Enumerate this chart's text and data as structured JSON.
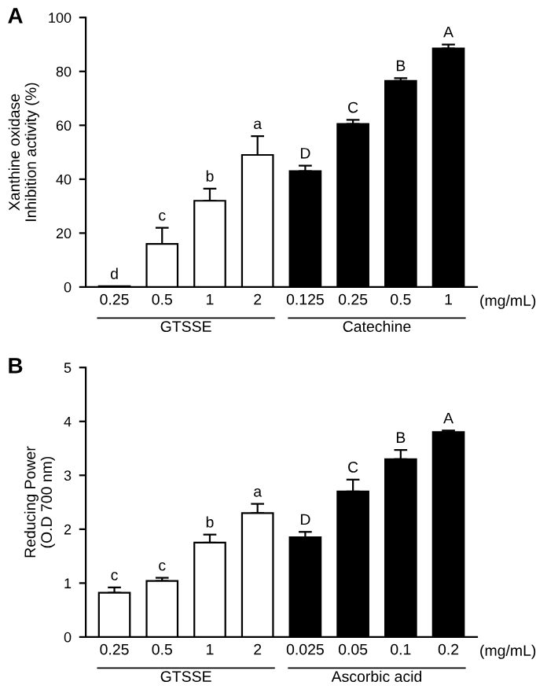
{
  "chart_data": [
    {
      "type": "bar",
      "title": "A",
      "ylabel": "Xanthine oxidase\nInhibition activity (%)",
      "categories": [
        "0.25",
        "0.5",
        "1",
        "2",
        "0.125",
        "0.25",
        "0.5",
        "1"
      ],
      "values": [
        0.3,
        16,
        32,
        49,
        43,
        60.5,
        76.5,
        88.5
      ],
      "errors": [
        null,
        [
          16,
          22
        ],
        [
          32,
          36.5
        ],
        [
          49,
          56
        ],
        [
          43,
          45
        ],
        [
          60.5,
          62
        ],
        [
          76.5,
          77.5
        ],
        [
          88.5,
          90
        ]
      ],
      "colors": [
        "#ffffff",
        "#ffffff",
        "#ffffff",
        "#ffffff",
        "#000000",
        "#000000",
        "#000000",
        "#000000"
      ],
      "value_labels": [
        "d",
        "c",
        "b",
        "a",
        "D",
        "C",
        "B",
        "A"
      ],
      "ylim": [
        0,
        100
      ],
      "yticks": [
        0,
        20,
        40,
        60,
        80,
        100
      ],
      "annotations": [
        "(mg/mL)",
        "GTSSE",
        "Catechine"
      ]
    },
    {
      "type": "bar",
      "title": "B",
      "ylabel": "Reducing Power\n(O.D 700 nm)",
      "categories": [
        "0.25",
        "0.5",
        "1",
        "2",
        "0.025",
        "0.05",
        "0.1",
        "0.2"
      ],
      "values": [
        0.82,
        1.04,
        1.75,
        2.3,
        1.85,
        2.7,
        3.3,
        3.8
      ],
      "errors": [
        [
          0.82,
          0.92
        ],
        [
          1.04,
          1.1
        ],
        [
          1.75,
          1.9
        ],
        [
          2.3,
          2.47
        ],
        [
          1.85,
          1.95
        ],
        [
          2.7,
          2.92
        ],
        [
          3.3,
          3.47
        ],
        [
          3.8,
          3.83
        ]
      ],
      "colors": [
        "#ffffff",
        "#ffffff",
        "#ffffff",
        "#ffffff",
        "#000000",
        "#000000",
        "#000000",
        "#000000"
      ],
      "value_labels": [
        "c",
        "c",
        "b",
        "a",
        "D",
        "C",
        "B",
        "A"
      ],
      "ylim": [
        0,
        5
      ],
      "yticks": [
        0,
        1,
        2,
        3,
        4,
        5
      ],
      "annotations": [
        "(mg/mL)",
        "GTSSE",
        "Ascorbic acid"
      ]
    }
  ]
}
